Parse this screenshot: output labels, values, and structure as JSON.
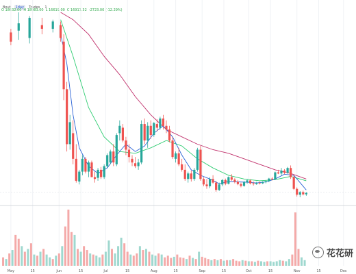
{
  "toolbar": {
    "items": [
      "Bout",
      "1day",
      "Trades",
      "1"
    ],
    "active_index": 1,
    "ohlc": [
      "O 18632.00",
      "H 18983.00",
      "L 16619.00",
      "C 16917.32",
      "-2723.00 (-12.29%)"
    ]
  },
  "watermark": {
    "text": "花花研"
  },
  "colors": {
    "up": "#26a69a",
    "down": "#ef5350",
    "ma_fast": "#2a63d6",
    "ma_mid": "#2ecc71",
    "ma_slow": "#c0306b",
    "volume_up": "#9fd8cf",
    "volume_down": "#f4a9a8"
  },
  "chart_data": {
    "type": "candlestick",
    "title": "",
    "x_tick_labels": [
      "May",
      "15",
      "Jun",
      "15",
      "Jul",
      "15",
      "Aug",
      "15",
      "Sep",
      "15",
      "Oct",
      "15",
      "Nov",
      "15",
      "Dec"
    ],
    "x_tick_positions": [
      0,
      14,
      31,
      45,
      61,
      75,
      92,
      106,
      123,
      137,
      153,
      167,
      184,
      198,
      214
    ],
    "x_range": [
      -7,
      222
    ],
    "price_range": [
      14000,
      66000
    ],
    "volume_range": [
      0,
      100
    ],
    "grid": true,
    "series": [
      {
        "name": "Price",
        "kind": "candles",
        "values": [
          [
            0,
            60500,
            61500,
            57000,
            58000
          ],
          [
            5,
            61000,
            66000,
            58500,
            63000
          ],
          [
            12,
            59000,
            65000,
            57500,
            64500
          ],
          [
            20,
            62500,
            64500,
            60000,
            61500
          ],
          [
            27,
            61500,
            64000,
            60500,
            63500
          ],
          [
            32,
            62500,
            63500,
            58000,
            59000
          ],
          [
            34,
            58000,
            60000,
            42000,
            45000
          ],
          [
            36,
            45000,
            47000,
            28000,
            30000
          ],
          [
            38,
            30000,
            38000,
            28500,
            36000
          ],
          [
            40,
            33000,
            36500,
            24500,
            26000
          ],
          [
            42,
            26000,
            30000,
            19500,
            20000
          ],
          [
            44,
            19800,
            23000,
            19000,
            22500
          ],
          [
            46,
            22500,
            27000,
            21500,
            26000
          ],
          [
            48,
            26000,
            26500,
            22000,
            22500
          ],
          [
            50,
            22500,
            25500,
            21000,
            25000
          ],
          [
            52,
            25000,
            25500,
            21000,
            21000
          ],
          [
            54,
            21000,
            22500,
            19500,
            20500
          ],
          [
            56,
            20800,
            23500,
            20000,
            23000
          ],
          [
            58,
            23000,
            23800,
            20500,
            21000
          ],
          [
            60,
            21000,
            24500,
            20500,
            24000
          ],
          [
            62,
            24000,
            27500,
            23500,
            27000
          ],
          [
            64,
            25000,
            28500,
            24500,
            28000
          ],
          [
            66,
            28000,
            30000,
            24000,
            25000
          ],
          [
            68,
            24500,
            33000,
            24000,
            32500
          ],
          [
            70,
            33000,
            36500,
            31000,
            35000
          ],
          [
            72,
            34500,
            35500,
            30500,
            31000
          ],
          [
            74,
            31000,
            32000,
            27000,
            28500
          ],
          [
            76,
            28500,
            30000,
            25000,
            26500
          ],
          [
            78,
            26000,
            27000,
            24000,
            25000
          ],
          [
            80,
            24800,
            26500,
            23500,
            24000
          ],
          [
            82,
            24000,
            26000,
            23000,
            25000
          ],
          [
            84,
            25000,
            36500,
            24500,
            35500
          ],
          [
            86,
            35500,
            37000,
            30000,
            31000
          ],
          [
            88,
            31000,
            36000,
            29000,
            35000
          ],
          [
            90,
            35000,
            36500,
            31500,
            32500
          ],
          [
            92,
            32500,
            36000,
            32000,
            35800
          ],
          [
            94,
            35500,
            36800,
            33500,
            34500
          ],
          [
            96,
            34500,
            37500,
            34000,
            37000
          ],
          [
            98,
            37000,
            38000,
            34000,
            35000
          ],
          [
            100,
            35000,
            36500,
            33000,
            34000
          ],
          [
            102,
            34000,
            35000,
            30500,
            31000
          ],
          [
            104,
            31000,
            32000,
            26000,
            26500
          ],
          [
            106,
            26000,
            28000,
            25000,
            27500
          ],
          [
            108,
            27500,
            29000,
            24000,
            24500
          ],
          [
            110,
            24500,
            26000,
            22500,
            23000
          ],
          [
            112,
            23000,
            24500,
            20000,
            20500
          ],
          [
            114,
            20500,
            22500,
            19500,
            22000
          ],
          [
            116,
            22000,
            22800,
            19800,
            20500
          ],
          [
            118,
            20500,
            23500,
            20000,
            23000
          ],
          [
            120,
            23000,
            29000,
            22500,
            28500
          ],
          [
            122,
            28500,
            29500,
            20000,
            20500
          ],
          [
            124,
            20500,
            21000,
            18500,
            19000
          ],
          [
            126,
            19000,
            20500,
            17800,
            18500
          ],
          [
            128,
            18500,
            21000,
            18000,
            20500
          ],
          [
            130,
            20500,
            21500,
            19200,
            19500
          ],
          [
            132,
            19500,
            20000,
            17000,
            17500
          ],
          [
            134,
            17500,
            19500,
            17200,
            19000
          ],
          [
            136,
            19000,
            20500,
            18500,
            20200
          ],
          [
            138,
            20200,
            20600,
            18800,
            19200
          ],
          [
            140,
            19200,
            21200,
            19000,
            21000
          ],
          [
            142,
            21000,
            21800,
            20000,
            20300
          ],
          [
            144,
            20300,
            20700,
            19300,
            19700
          ],
          [
            146,
            19700,
            20200,
            18800,
            19100
          ],
          [
            148,
            19100,
            19500,
            18200,
            18600
          ],
          [
            150,
            18600,
            20000,
            18400,
            19600
          ],
          [
            152,
            19600,
            20500,
            19200,
            20100
          ],
          [
            154,
            20100,
            20400,
            19000,
            19300
          ],
          [
            156,
            19300,
            19800,
            18700,
            19100
          ],
          [
            158,
            19100,
            19700,
            18900,
            19400
          ],
          [
            160,
            19400,
            19800,
            19000,
            19300
          ],
          [
            162,
            19300,
            19900,
            19100,
            19600
          ],
          [
            164,
            19600,
            20100,
            19300,
            19900
          ],
          [
            166,
            19900,
            20800,
            19600,
            20600
          ],
          [
            168,
            20600,
            21000,
            20100,
            20400
          ],
          [
            170,
            20400,
            22500,
            20300,
            22300
          ],
          [
            172,
            22300,
            23000,
            21800,
            22000
          ],
          [
            174,
            22000,
            23500,
            21500,
            22800
          ],
          [
            176,
            22800,
            23200,
            21800,
            22200
          ],
          [
            178,
            22200,
            23800,
            21900,
            23500
          ],
          [
            180,
            23500,
            24200,
            20500,
            21000
          ],
          [
            182,
            21000,
            21500,
            17500,
            17800
          ],
          [
            184,
            17800,
            18200,
            15700,
            16200
          ],
          [
            186,
            16200,
            17200,
            15500,
            16900
          ],
          [
            188,
            16900,
            17300,
            16000,
            16300
          ],
          [
            190,
            16300,
            16900,
            15900,
            16700
          ]
        ]
      },
      {
        "name": "MA fast",
        "kind": "line",
        "x": [
          32,
          36,
          40,
          44,
          50,
          56,
          62,
          68,
          74,
          80,
          86,
          92,
          98,
          104,
          110,
          116,
          122,
          128,
          134,
          140,
          146,
          152,
          158,
          164,
          170,
          176,
          182,
          188,
          190
        ],
        "values": [
          60000,
          52000,
          38000,
          29000,
          24000,
          22000,
          23500,
          27000,
          30000,
          28000,
          29500,
          33000,
          35000,
          32000,
          27000,
          23000,
          21500,
          20500,
          19200,
          19800,
          19700,
          19600,
          19400,
          19700,
          20500,
          21800,
          21500,
          18500,
          17500
        ]
      },
      {
        "name": "MA mid",
        "kind": "line",
        "x": [
          32,
          40,
          50,
          60,
          70,
          80,
          90,
          100,
          110,
          120,
          130,
          140,
          150,
          160,
          170,
          180,
          190
        ],
        "values": [
          64000,
          54000,
          40000,
          32000,
          28000,
          27500,
          29000,
          31000,
          29500,
          26000,
          23500,
          21500,
          20500,
          20000,
          20300,
          21200,
          20000
        ]
      },
      {
        "name": "MA slow",
        "kind": "line",
        "x": [
          32,
          40,
          50,
          60,
          70,
          80,
          90,
          100,
          110,
          120,
          130,
          140,
          150,
          160,
          170,
          180,
          190
        ],
        "values": [
          66000,
          64000,
          60000,
          54000,
          49000,
          43000,
          38000,
          34000,
          32000,
          30000,
          28500,
          27500,
          26000,
          24500,
          23000,
          22000,
          20500
        ]
      },
      {
        "name": "Volume",
        "kind": "bars",
        "x": [
          -5,
          -3,
          -1,
          1,
          3,
          5,
          7,
          9,
          11,
          13,
          15,
          17,
          19,
          21,
          23,
          25,
          27,
          29,
          31,
          33,
          35,
          37,
          39,
          41,
          43,
          45,
          47,
          49,
          51,
          53,
          55,
          57,
          59,
          61,
          63,
          65,
          67,
          69,
          71,
          73,
          75,
          77,
          79,
          81,
          83,
          85,
          87,
          89,
          91,
          93,
          95,
          97,
          99,
          101,
          103,
          105,
          107,
          109,
          111,
          113,
          115,
          117,
          119,
          121,
          123,
          125,
          127,
          129,
          131,
          133,
          135,
          137,
          139,
          141,
          143,
          145,
          147,
          149,
          151,
          153,
          155,
          157,
          159,
          161,
          163,
          165,
          167,
          169,
          171,
          173,
          175,
          177,
          179,
          181,
          183,
          185,
          187,
          189
        ],
        "values": [
          15,
          12,
          22,
          28,
          55,
          48,
          35,
          25,
          30,
          40,
          20,
          18,
          25,
          30,
          20,
          15,
          12,
          18,
          22,
          35,
          70,
          100,
          60,
          55,
          30,
          25,
          35,
          28,
          22,
          20,
          18,
          15,
          20,
          25,
          45,
          30,
          22,
          35,
          50,
          40,
          25,
          20,
          18,
          22,
          35,
          28,
          30,
          25,
          20,
          18,
          22,
          20,
          15,
          18,
          14,
          16,
          20,
          15,
          14,
          12,
          18,
          14,
          12,
          25,
          16,
          14,
          12,
          10,
          12,
          10,
          12,
          9,
          10,
          10,
          12,
          9,
          8,
          10,
          9,
          8,
          8,
          7,
          9,
          8,
          7,
          8,
          8,
          7,
          8,
          10,
          9,
          8,
          12,
          20,
          95,
          30,
          15,
          10
        ],
        "up": [
          0,
          1,
          0,
          1,
          0,
          0,
          1,
          0,
          1,
          0,
          1,
          0,
          1,
          0,
          1,
          1,
          0,
          1,
          0,
          1,
          0,
          0,
          0,
          1,
          0,
          1,
          0,
          0,
          1,
          0,
          1,
          1,
          0,
          1,
          1,
          0,
          1,
          1,
          1,
          0,
          0,
          1,
          0,
          0,
          1,
          0,
          1,
          0,
          1,
          1,
          0,
          1,
          0,
          0,
          0,
          1,
          0,
          0,
          0,
          1,
          0,
          1,
          0,
          1,
          0,
          0,
          0,
          1,
          0,
          1,
          0,
          1,
          0,
          1,
          0,
          0,
          0,
          1,
          0,
          1,
          0,
          1,
          0,
          1,
          1,
          0,
          1,
          1,
          1,
          1,
          0,
          1,
          1,
          0,
          0,
          0,
          1,
          1
        ]
      }
    ]
  }
}
